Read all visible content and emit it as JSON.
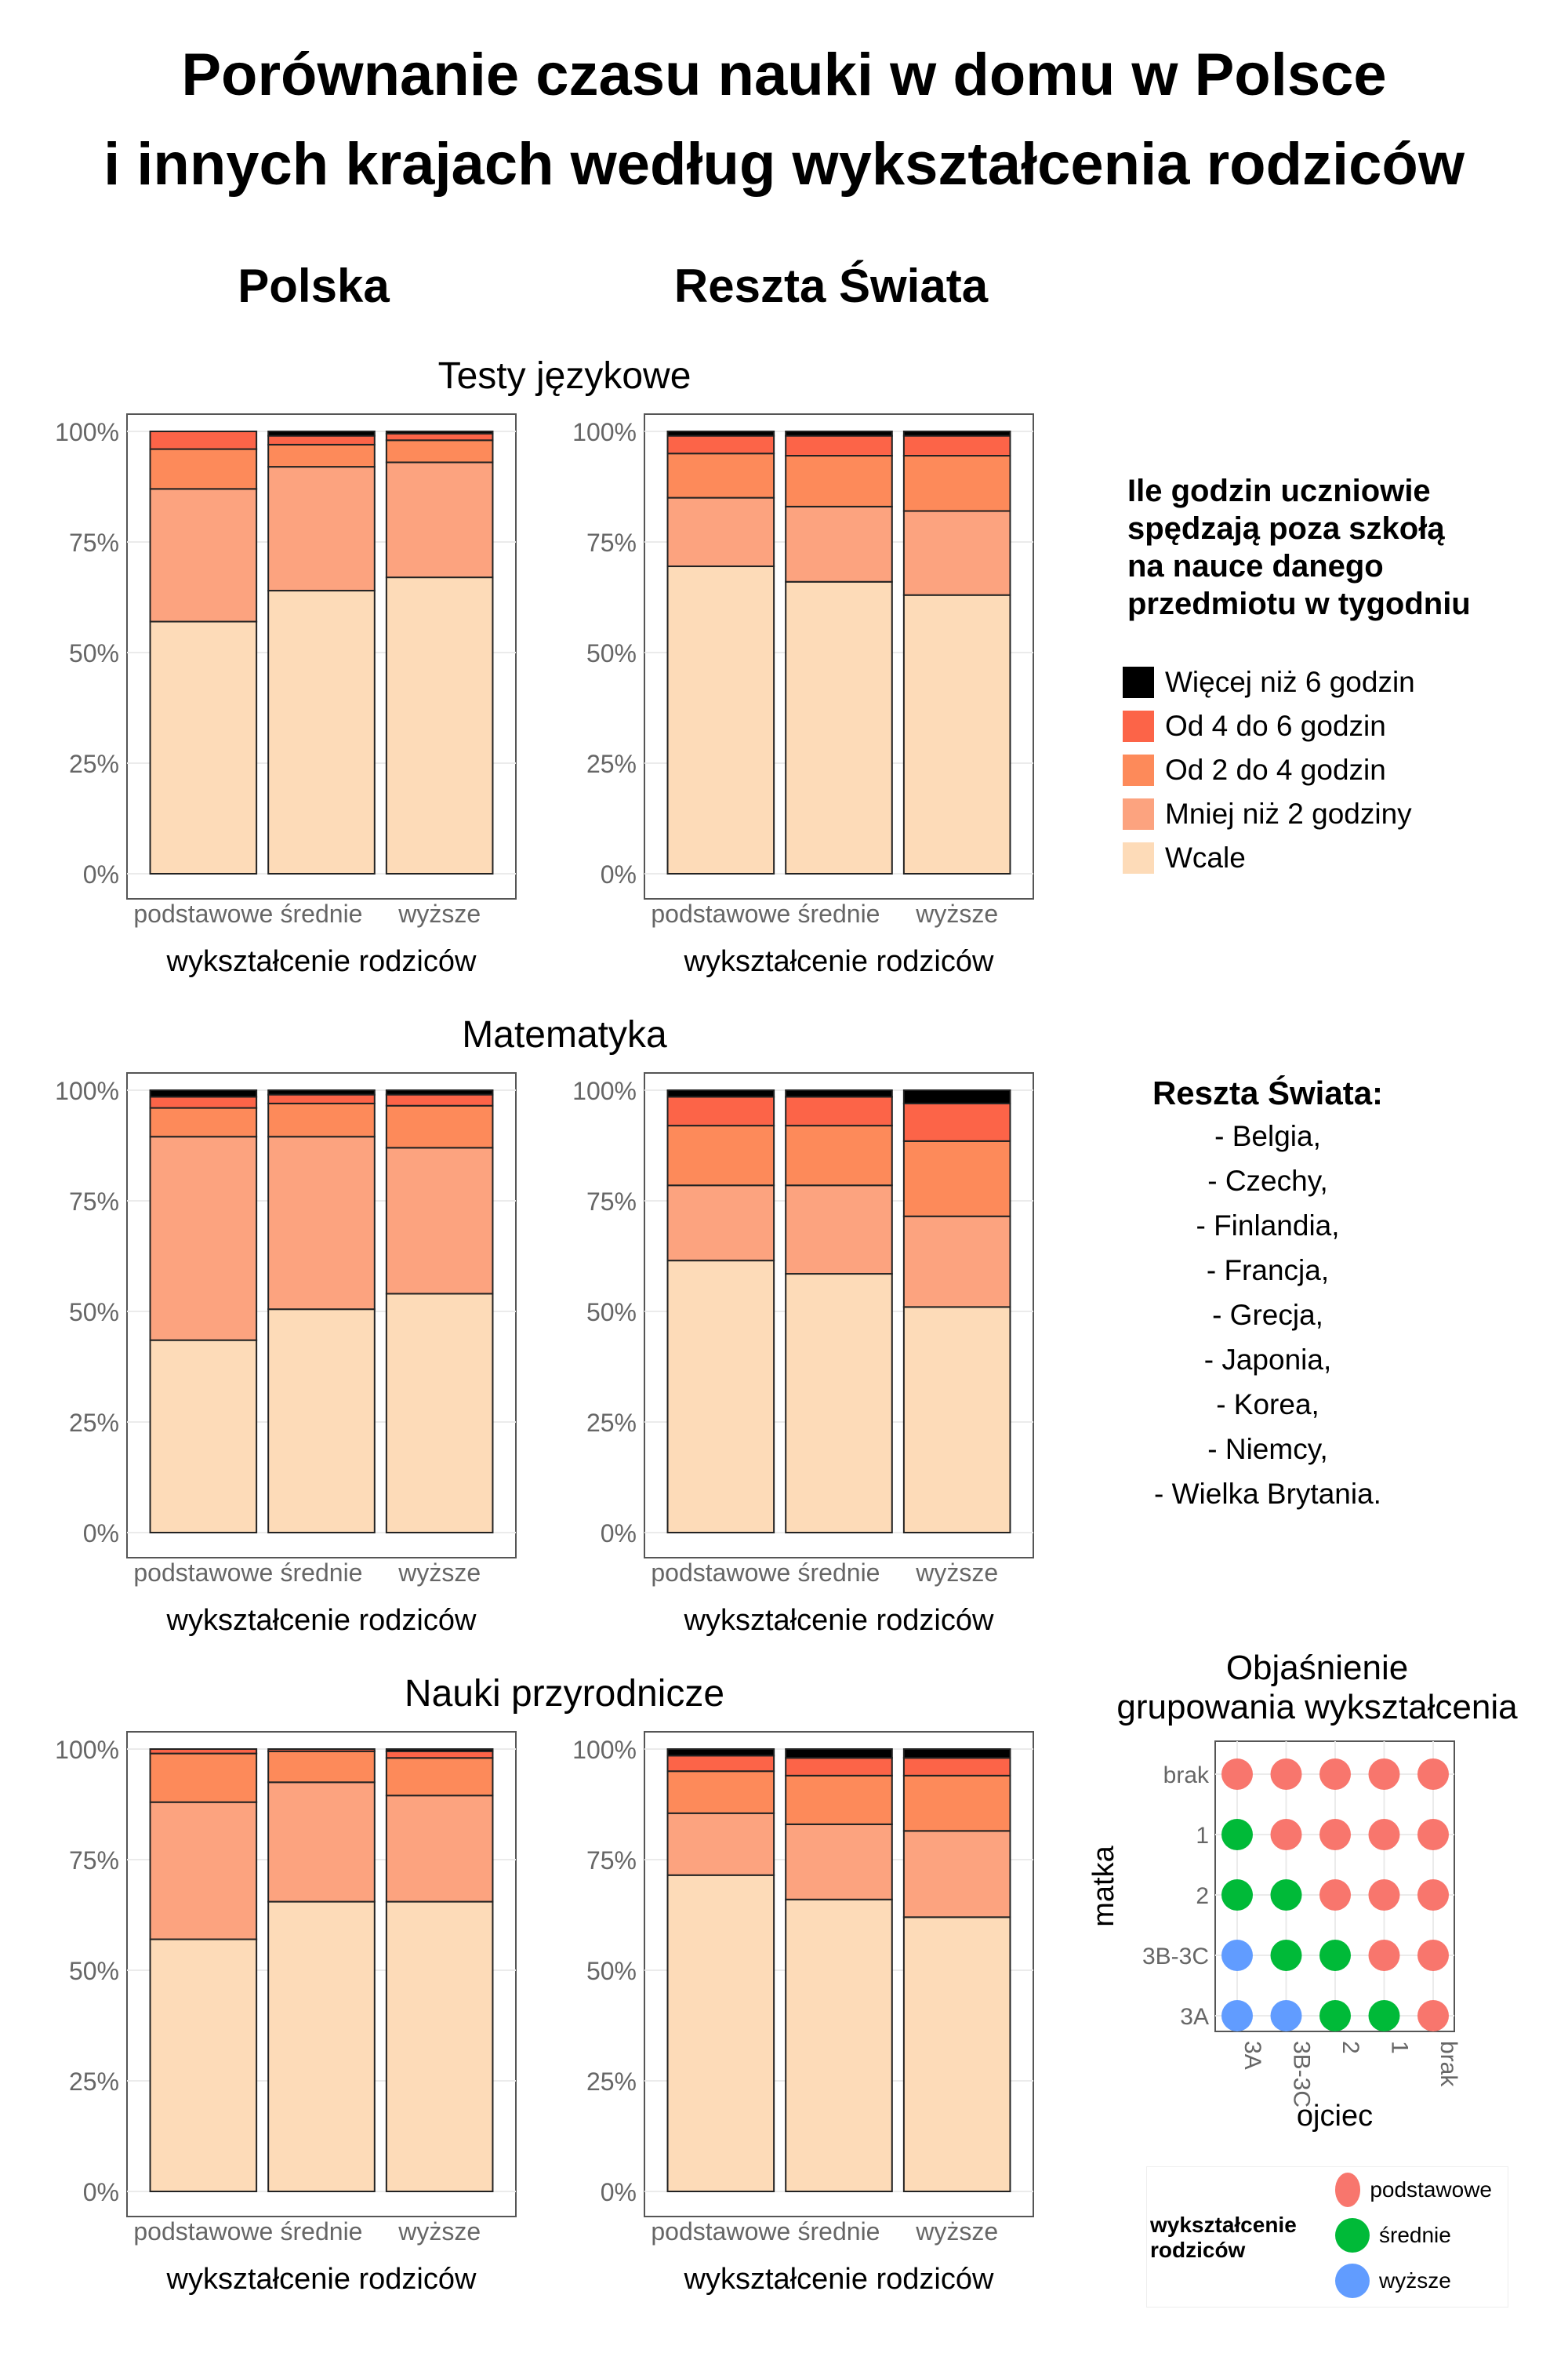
{
  "title_line1": "Porównanie czasu nauki w domu w Polsce",
  "title_line2": "i innych krajach według wykształcenia rodziców",
  "columns": [
    "Polska",
    "Reszta Świata"
  ],
  "categories": [
    "podstawowe",
    "średnie",
    "wyższe"
  ],
  "xlabel": "wykształcenie rodziców",
  "y_ticks": [
    "0%",
    "25%",
    "50%",
    "75%",
    "100%"
  ],
  "legend": {
    "title": "Ile godzin uczniowie\nspędzają poza szkołą\nna nauce danego\nprzedmiotu w tygodniu",
    "items": [
      {
        "label": "Więcej niż 6 godzin",
        "color": "#000000"
      },
      {
        "label": "Od 4 do 6 godzin",
        "color": "#FC6448"
      },
      {
        "label": "Od 2 do 4 godzin",
        "color": "#FD8A5A"
      },
      {
        "label": "Mniej niż 2 godziny",
        "color": "#FCA37F"
      },
      {
        "label": "Wcale",
        "color": "#FDDBB8"
      }
    ]
  },
  "rest_of_world": {
    "title": "Reszta Świata:",
    "countries": [
      "- Belgia,",
      "- Czechy,",
      "- Finlandia,",
      "- Francja,",
      "- Grecja,",
      "- Japonia,",
      "- Korea,",
      "- Niemcy,",
      "- Wielka Brytania."
    ]
  },
  "explanation": {
    "title": "Objaśnienie\ngrupowania wykształcenia",
    "ylabel": "matka",
    "xlabel": "ojciec",
    "rows": [
      "brak",
      "1",
      "2",
      "3B-3C",
      "3A"
    ],
    "cols": [
      "3A",
      "3B-3C",
      "2",
      "1",
      "brak"
    ],
    "colors": {
      "podstawowe": "#F8766D",
      "średnie": "#00BA38",
      "wyższe": "#619CFF"
    },
    "grid": [
      [
        "podstawowe",
        "podstawowe",
        "podstawowe",
        "podstawowe",
        "podstawowe"
      ],
      [
        "średnie",
        "podstawowe",
        "podstawowe",
        "podstawowe",
        "podstawowe"
      ],
      [
        "średnie",
        "średnie",
        "podstawowe",
        "podstawowe",
        "podstawowe"
      ],
      [
        "wyższe",
        "średnie",
        "średnie",
        "podstawowe",
        "podstawowe"
      ],
      [
        "wyższe",
        "wyższe",
        "średnie",
        "średnie",
        "podstawowe"
      ]
    ],
    "legend_title": "wykształcenie\nrodziców",
    "legend_items": [
      "podstawowe",
      "średnie",
      "wyższe"
    ]
  },
  "chart_data": [
    {
      "type": "bar",
      "subject": "Testy językowe",
      "region": "Polska",
      "categories": [
        "podstawowe",
        "średnie",
        "wyższe"
      ],
      "ylim": [
        0,
        100
      ],
      "series": [
        {
          "name": "Wcale",
          "values": [
            57,
            64,
            67
          ]
        },
        {
          "name": "Mniej niż 2 godziny",
          "values": [
            30,
            28,
            26
          ]
        },
        {
          "name": "Od 2 do 4 godzin",
          "values": [
            9,
            5,
            5
          ]
        },
        {
          "name": "Od 4 do 6 godzin",
          "values": [
            4,
            2,
            1.5
          ]
        },
        {
          "name": "Więcej niż 6 godzin",
          "values": [
            0,
            1,
            0.5
          ]
        }
      ]
    },
    {
      "type": "bar",
      "subject": "Testy językowe",
      "region": "Reszta Świata",
      "categories": [
        "podstawowe",
        "średnie",
        "wyższe"
      ],
      "ylim": [
        0,
        100
      ],
      "series": [
        {
          "name": "Wcale",
          "values": [
            69.5,
            66,
            63
          ]
        },
        {
          "name": "Mniej niż 2 godziny",
          "values": [
            15.5,
            17,
            19
          ]
        },
        {
          "name": "Od 2 do 4 godzin",
          "values": [
            10,
            11.5,
            12.5
          ]
        },
        {
          "name": "Od 4 do 6 godzin",
          "values": [
            4,
            4.5,
            4.5
          ]
        },
        {
          "name": "Więcej niż 6 godzin",
          "values": [
            1,
            1,
            1
          ]
        }
      ]
    },
    {
      "type": "bar",
      "subject": "Matematyka",
      "region": "Polska",
      "categories": [
        "podstawowe",
        "średnie",
        "wyższe"
      ],
      "ylim": [
        0,
        100
      ],
      "series": [
        {
          "name": "Wcale",
          "values": [
            43.5,
            50.5,
            54
          ]
        },
        {
          "name": "Mniej niż 2 godziny",
          "values": [
            46,
            39,
            33
          ]
        },
        {
          "name": "Od 2 do 4 godzin",
          "values": [
            6.5,
            7.5,
            9.5
          ]
        },
        {
          "name": "Od 4 do 6 godzin",
          "values": [
            2.5,
            2,
            2.5
          ]
        },
        {
          "name": "Więcej niż 6 godzin",
          "values": [
            1.5,
            1,
            1
          ]
        }
      ]
    },
    {
      "type": "bar",
      "subject": "Matematyka",
      "region": "Reszta Świata",
      "categories": [
        "podstawowe",
        "średnie",
        "wyższe"
      ],
      "ylim": [
        0,
        100
      ],
      "series": [
        {
          "name": "Wcale",
          "values": [
            61.5,
            58.5,
            51
          ]
        },
        {
          "name": "Mniej niż 2 godziny",
          "values": [
            17,
            20,
            20.5
          ]
        },
        {
          "name": "Od 2 do 4 godzin",
          "values": [
            13.5,
            13.5,
            17
          ]
        },
        {
          "name": "Od 4 do 6 godzin",
          "values": [
            6.5,
            6.5,
            8.5
          ]
        },
        {
          "name": "Więcej niż 6 godzin",
          "values": [
            1.5,
            1.5,
            3
          ]
        }
      ]
    },
    {
      "type": "bar",
      "subject": "Nauki przyrodnicze",
      "region": "Polska",
      "categories": [
        "podstawowe",
        "średnie",
        "wyższe"
      ],
      "ylim": [
        0,
        100
      ],
      "series": [
        {
          "name": "Wcale",
          "values": [
            57,
            65.5,
            65.5
          ]
        },
        {
          "name": "Mniej niż 2 godziny",
          "values": [
            31,
            27,
            24
          ]
        },
        {
          "name": "Od 2 do 4 godzin",
          "values": [
            11,
            7,
            8.5
          ]
        },
        {
          "name": "Od 4 do 6 godzin",
          "values": [
            1,
            0.5,
            1.5
          ]
        },
        {
          "name": "Więcej niż 6 godzin",
          "values": [
            0,
            0,
            0.5
          ]
        }
      ]
    },
    {
      "type": "bar",
      "subject": "Nauki przyrodnicze",
      "region": "Reszta Świata",
      "categories": [
        "podstawowe",
        "średnie",
        "wyższe"
      ],
      "ylim": [
        0,
        100
      ],
      "series": [
        {
          "name": "Wcale",
          "values": [
            71.5,
            66,
            62
          ]
        },
        {
          "name": "Mniej niż 2 godziny",
          "values": [
            14,
            17,
            19.5
          ]
        },
        {
          "name": "Od 2 do 4 godzin",
          "values": [
            9.5,
            11,
            12.5
          ]
        },
        {
          "name": "Od 4 do 6 godzin",
          "values": [
            3.5,
            4,
            4
          ]
        },
        {
          "name": "Więcej niż 6 godzin",
          "values": [
            1.5,
            2,
            2
          ]
        }
      ]
    }
  ]
}
